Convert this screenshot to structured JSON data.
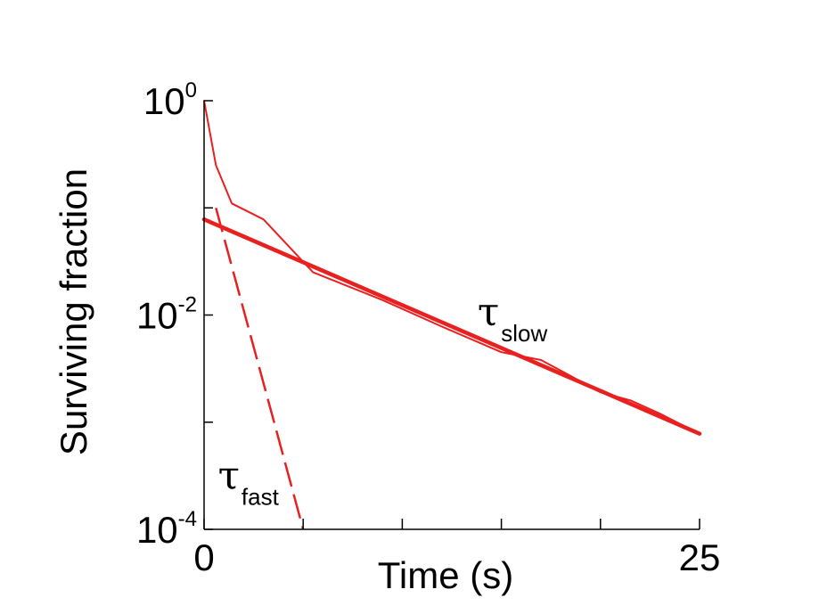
{
  "chart_data": {
    "type": "line",
    "xlabel": "Time (s)",
    "ylabel": "Surviving fraction",
    "xlim": [
      0,
      25
    ],
    "ylim": [
      0.0001,
      1
    ],
    "yscale": "log",
    "x_ticks": [
      {
        "value": 0,
        "label": "0"
      },
      {
        "value": 5,
        "label": ""
      },
      {
        "value": 10,
        "label": ""
      },
      {
        "value": 15,
        "label": ""
      },
      {
        "value": 20,
        "label": ""
      },
      {
        "value": 25,
        "label": "25"
      }
    ],
    "y_ticks": [
      {
        "value": 1,
        "base": "10",
        "exp": "0"
      },
      {
        "value": 0.1,
        "base": "",
        "exp": ""
      },
      {
        "value": 0.01,
        "base": "10",
        "exp": "-2"
      },
      {
        "value": 0.001,
        "base": "",
        "exp": ""
      },
      {
        "value": 0.0001,
        "base": "10",
        "exp": "-4"
      }
    ],
    "series": [
      {
        "style": "data",
        "color": "#e8201f",
        "x": [
          0,
          0.6,
          1.4,
          3.0,
          5.5,
          9.0,
          12.0,
          15.0,
          17.0,
          18.5,
          20.0,
          21.5,
          23.0,
          25.0
        ],
        "y": [
          1.0,
          0.25,
          0.11,
          0.078,
          0.025,
          0.0138,
          0.0078,
          0.0045,
          0.0038,
          0.0027,
          0.0019,
          0.0016,
          0.0012,
          0.00078
        ]
      },
      {
        "style": "fit-slow",
        "color": "#e8201f",
        "x": [
          0,
          25
        ],
        "y": [
          0.078,
          0.00078
        ]
      },
      {
        "style": "fit-fast",
        "color": "#e8201f",
        "x": [
          0.6,
          5.0
        ],
        "y": [
          0.1,
          0.0001
        ]
      }
    ],
    "annotations": [
      {
        "symbol": "τ",
        "subscript": "slow",
        "x": 13.8,
        "y": 0.008
      },
      {
        "symbol": "τ",
        "subscript": "fast",
        "x": 0.7,
        "y": 0.00024
      }
    ],
    "grid": false
  }
}
